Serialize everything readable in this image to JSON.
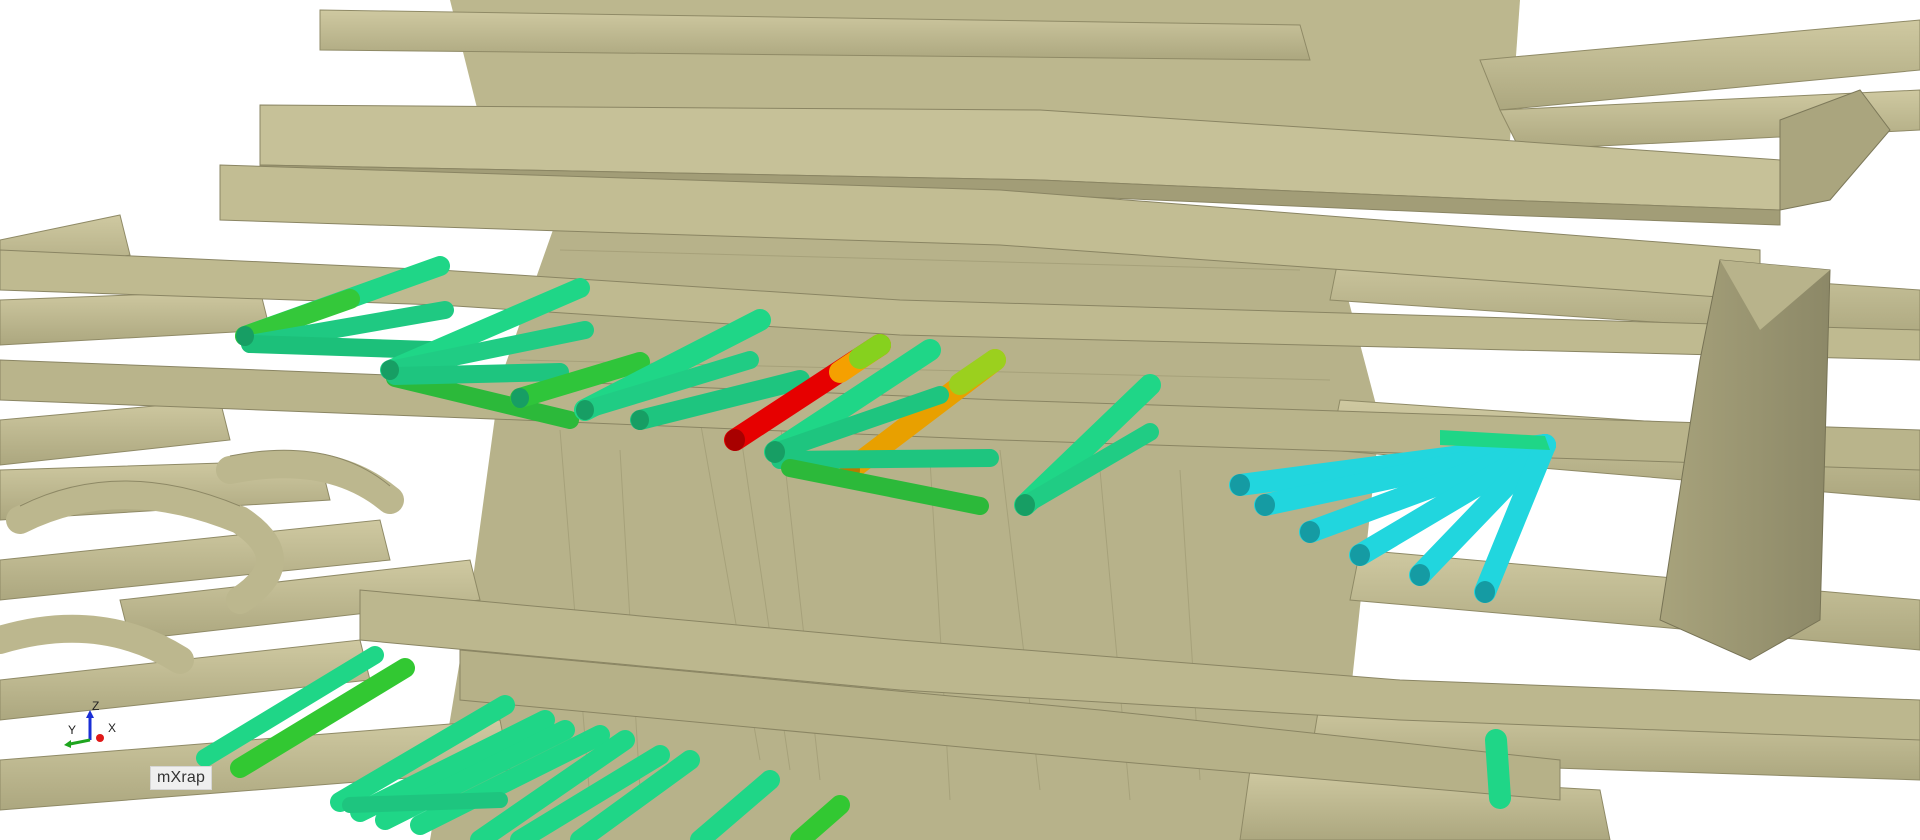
{
  "viewer": {
    "axes": {
      "x": "X",
      "y": "Y",
      "z": "Z"
    },
    "logo": "mXrap"
  },
  "colors": {
    "rock": "#c3be94",
    "rock_shadow": "#9b9771",
    "background": "#ffffff",
    "cable_green": "#1fd687",
    "cable_lime": "#32c832",
    "cable_red": "#e60000",
    "cable_orange": "#e8a000",
    "cable_cyan": "#21d6de"
  }
}
